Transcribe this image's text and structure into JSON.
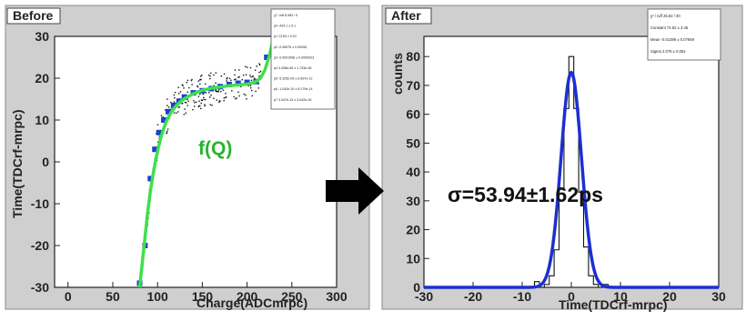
{
  "chart_data": [
    {
      "type": "scatter",
      "title": "Before",
      "xlabel": "Charge(ADCmrpc)",
      "ylabel": "Time(TDCrf-mrpc)",
      "xlim": [
        -15,
        300
      ],
      "ylim": [
        -30,
        30
      ],
      "xticks": [
        "0",
        "50",
        "100",
        "150",
        "200",
        "250",
        "300"
      ],
      "yticks": [
        "-30",
        "-20",
        "-10",
        "0",
        "10",
        "20",
        "30"
      ],
      "annotation": "f(Q)",
      "series": [
        {
          "marker": "profile",
          "x": [
            80,
            86,
            92,
            97,
            102,
            107,
            112,
            118,
            124,
            130,
            140,
            150,
            160,
            170,
            180,
            190,
            200,
            210,
            222
          ],
          "y": [
            -29,
            -20,
            -4,
            3,
            7,
            10,
            12,
            13.5,
            14.5,
            15.5,
            16.5,
            17,
            17.5,
            18,
            18.5,
            18.8,
            19,
            19.2,
            25
          ]
        },
        {
          "marker": "fit",
          "x": [
            80,
            83,
            86,
            89,
            92,
            95,
            98,
            101,
            104,
            107,
            110,
            115,
            120,
            125,
            130,
            140,
            150,
            160,
            170,
            180,
            190,
            200,
            205,
            210,
            215,
            220,
            225,
            230
          ],
          "y": [
            -30,
            -24,
            -18,
            -12,
            -7,
            -3,
            0.5,
            3.5,
            6,
            8,
            9.8,
            11.8,
            13.2,
            14.3,
            15.1,
            16.3,
            17.1,
            17.6,
            17.9,
            18.2,
            18.4,
            18.6,
            18.8,
            19.2,
            20,
            22,
            25.5,
            30
          ]
        }
      ],
      "stats_rows": [
        "χ² / ndf   6.982 / 9",
        "p0   -434.1 ± 5.1",
        "p1   13.83 ± 0.01",
        "p2   -0.06076 ± 0.00055",
        "p3   -0.0001598 ± 0.0000023",
        "p4   3.436e-06 ± 1.733e-08",
        "p5   -5.325e-09 ± 6.597e-12",
        "p6   -1.042e-10 ± 8.179e-14",
        "p7   3.047e-13 ± 3.042e-16"
      ]
    },
    {
      "type": "histogram",
      "title": "After",
      "xlabel": "Time(TDCrf-mrpc)",
      "ylabel": "counts",
      "xlim": [
        -30,
        30
      ],
      "ylim": [
        0,
        87
      ],
      "xticks": [
        "-30",
        "-20",
        "-10",
        "0",
        "10",
        "20",
        "30"
      ],
      "yticks": [
        "0",
        "10",
        "20",
        "30",
        "40",
        "50",
        "60",
        "70",
        "80"
      ],
      "annotation": "σ=53.94±1.62ps",
      "bins": {
        "x": [
          -8,
          -7,
          -6,
          -5,
          -4,
          -3,
          -2,
          -1,
          0,
          1,
          2,
          3,
          4,
          5,
          6,
          7
        ],
        "y": [
          0,
          2,
          0,
          1,
          4,
          13,
          34,
          62,
          80,
          62,
          33,
          14,
          4,
          1,
          0,
          1
        ]
      },
      "fit": {
        "function": "gaus",
        "constant": 74.52,
        "mean": -0.01389,
        "sigma": 2.075
      },
      "stats_rows": [
        "χ² / ndf   25.82 / 30",
        "Constant   74.52 ± 3.45",
        "Mean   -0.01389 ± 0.07669",
        "Sigma   2.075 ± 0.052"
      ]
    }
  ]
}
